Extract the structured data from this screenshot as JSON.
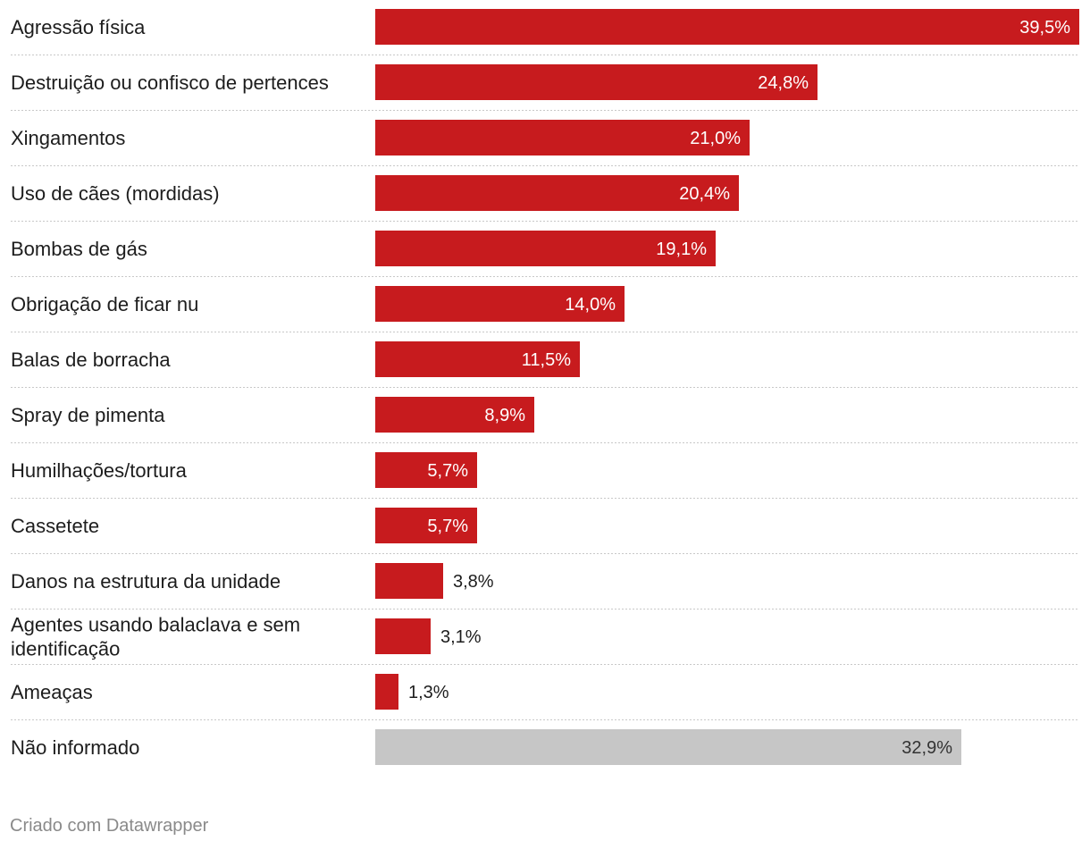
{
  "chart_data": {
    "type": "bar",
    "orientation": "horizontal",
    "categories": [
      "Agressão física",
      "Destruição ou confisco de pertences",
      "Xingamentos",
      "Uso de cães (mordidas)",
      "Bombas de gás",
      "Obrigação de ficar nu",
      "Balas de borracha",
      "Spray de pimenta",
      "Humilhações/tortura",
      "Cassetete",
      "Danos na estrutura da unidade",
      "Agentes usando balaclava e sem identificação",
      "Ameaças",
      "Não informado"
    ],
    "values": [
      39.5,
      24.8,
      21.0,
      20.4,
      19.1,
      14.0,
      11.5,
      8.9,
      5.7,
      5.7,
      3.8,
      3.1,
      1.3,
      32.9
    ],
    "value_labels": [
      "39,5%",
      "24,8%",
      "21,0%",
      "20,4%",
      "19,1%",
      "14,0%",
      "11,5%",
      "8,9%",
      "5,7%",
      "5,7%",
      "3,8%",
      "3,1%",
      "1,3%",
      "32,9%"
    ],
    "highlighted": [
      true,
      true,
      true,
      true,
      true,
      true,
      true,
      true,
      true,
      true,
      true,
      true,
      true,
      false
    ],
    "xlim": [
      0,
      39.5
    ],
    "grid": false,
    "colors": {
      "bar": "#c71b1e",
      "bar_muted": "#c6c6c6",
      "label_on_bar": "#ffffff",
      "label_on_muted": "#333333",
      "label_outside": "#1d1d1d"
    }
  },
  "footer": {
    "credit": "Criado com Datawrapper"
  }
}
